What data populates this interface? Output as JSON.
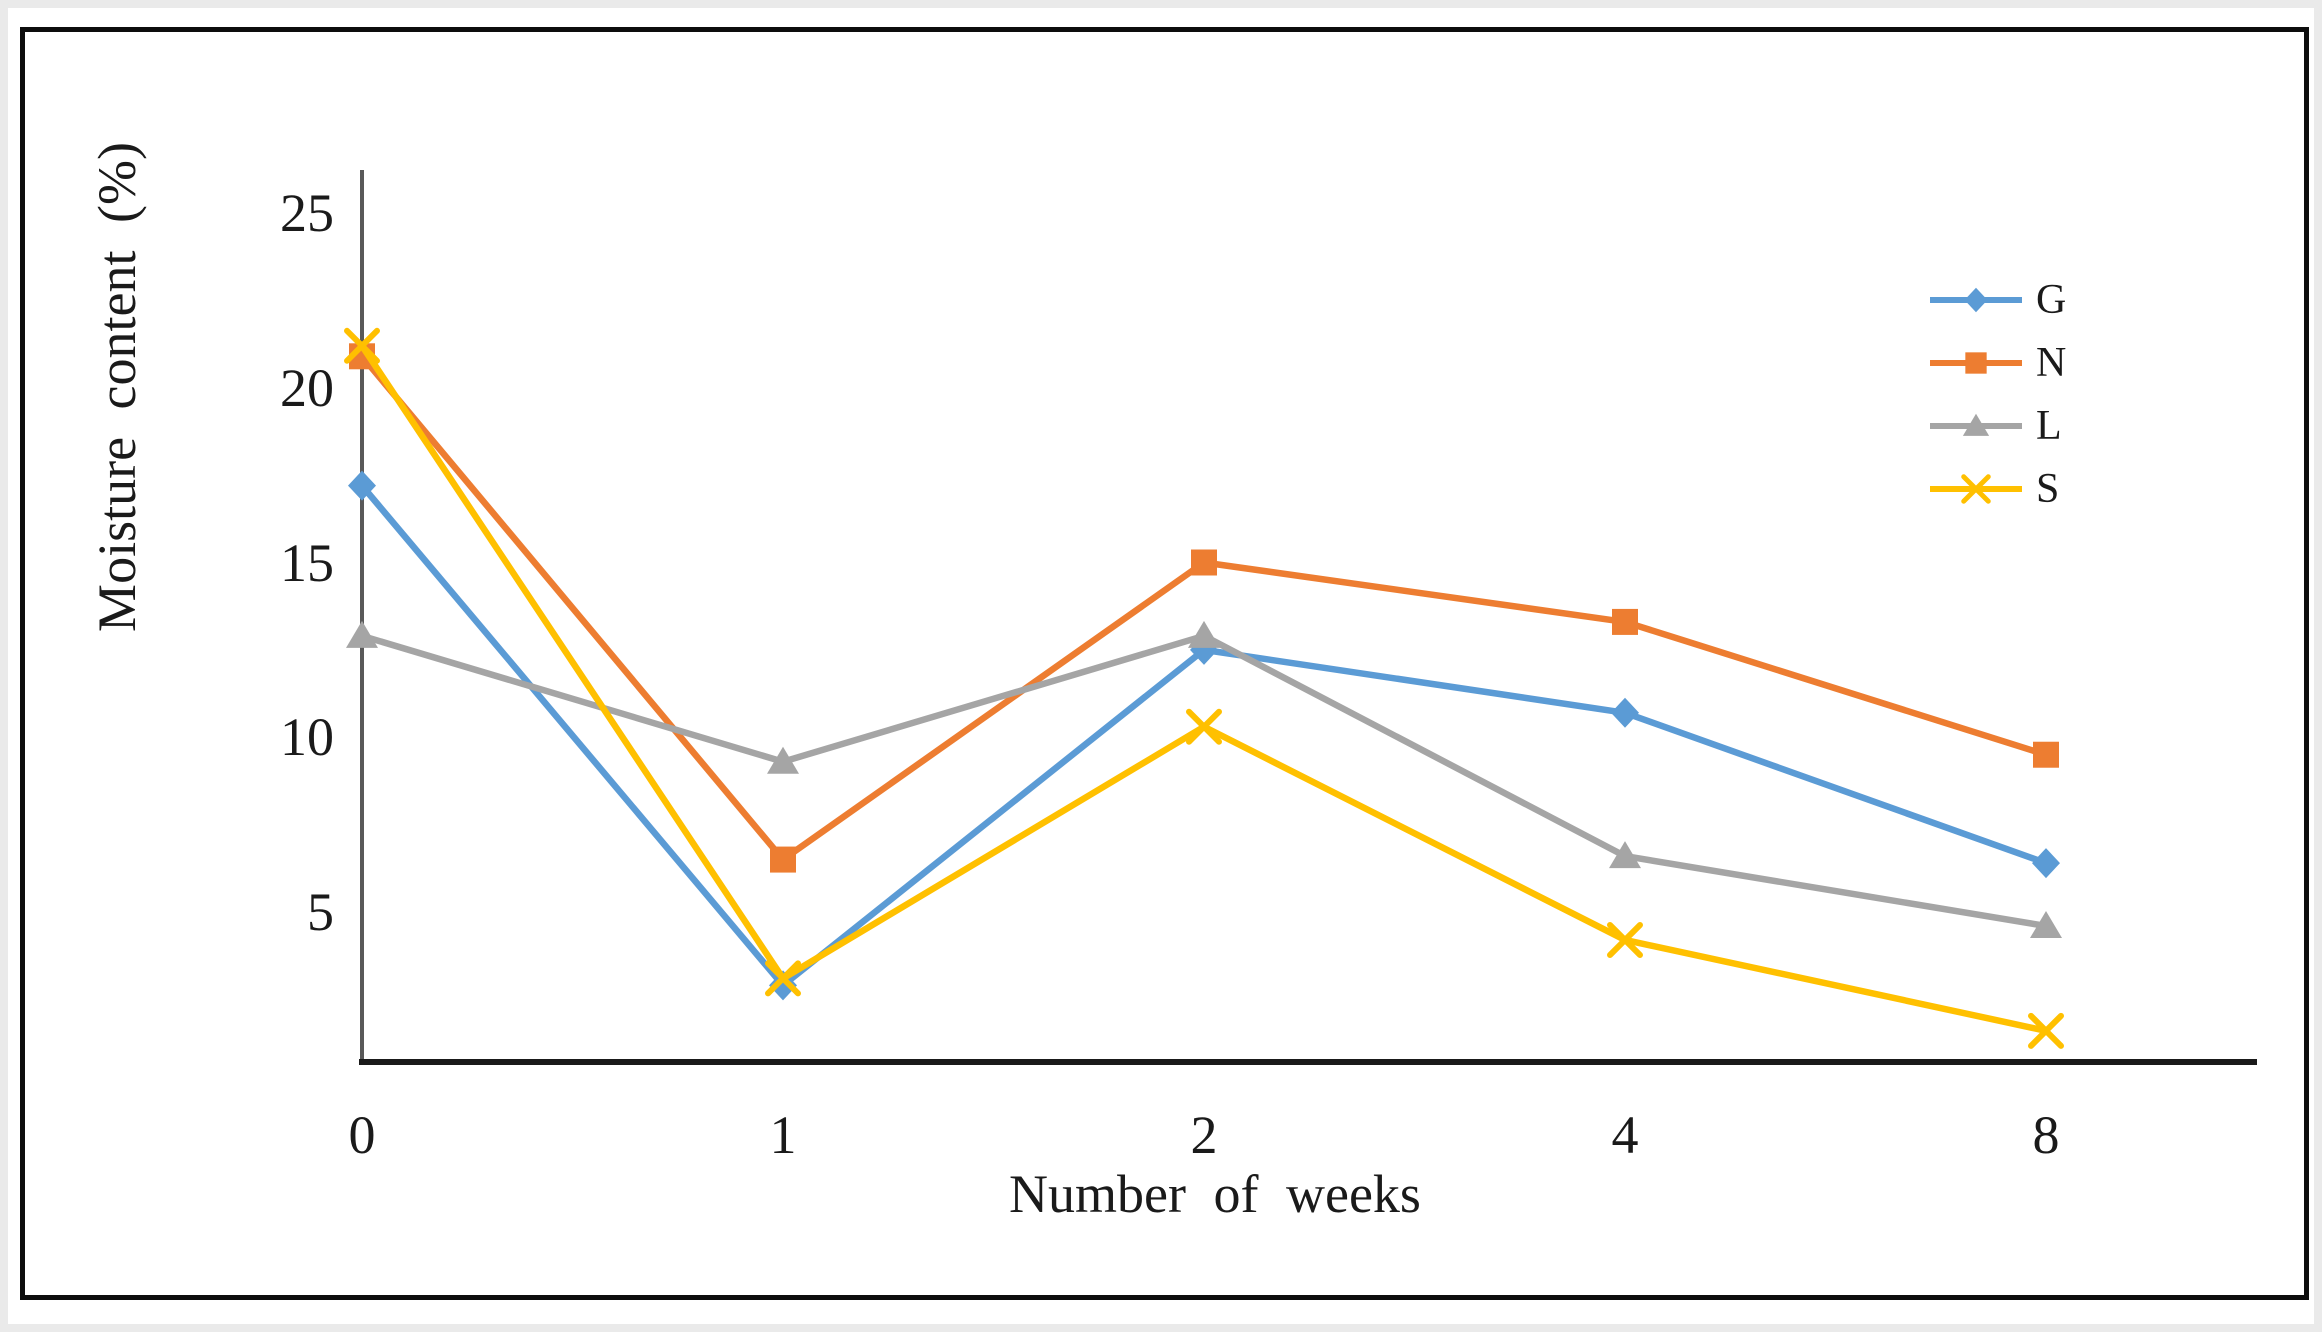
{
  "chart_data": {
    "type": "line",
    "title": "",
    "xlabel": "Number of weeks",
    "ylabel": "Moisture content (%)",
    "categories": [
      "0",
      "1",
      "2",
      "4",
      "8"
    ],
    "y_ticks": [
      25,
      20,
      15,
      10,
      5
    ],
    "ylim": [
      0,
      26
    ],
    "grid": false,
    "legend_position": "right-top",
    "axis_color_y": "#595959",
    "axis_color_x": "#1a1a1a",
    "text_color": "#1a1a1a",
    "series": [
      {
        "name": "G",
        "color": "#5B9BD5",
        "marker": "diamond",
        "values": [
          17.2,
          2.9,
          12.5,
          10.7,
          6.4
        ]
      },
      {
        "name": "N",
        "color": "#ED7D31",
        "marker": "square",
        "values": [
          20.9,
          6.5,
          15.0,
          13.3,
          9.5
        ]
      },
      {
        "name": "L",
        "color": "#A5A5A5",
        "marker": "triangle",
        "values": [
          12.9,
          9.3,
          12.9,
          6.6,
          4.6
        ]
      },
      {
        "name": "S",
        "color": "#FFC000",
        "marker": "x",
        "values": [
          21.2,
          3.1,
          10.3,
          4.2,
          1.6
        ]
      }
    ]
  }
}
